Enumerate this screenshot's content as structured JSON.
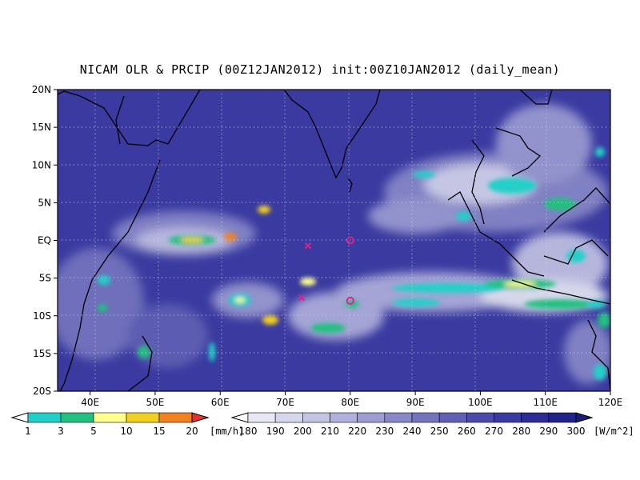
{
  "title": "NICAM OLR & PRCIP (00Z12JAN2012) init:00Z10JAN2012 (daily_mean)",
  "map": {
    "lon_range": [
      35,
      120
    ],
    "lat_range": [
      -20,
      20
    ],
    "lat_ticks": [
      "20N",
      "15N",
      "10N",
      "5N",
      "EQ",
      "5S",
      "10S",
      "15S",
      "20S"
    ],
    "lon_ticks": [
      "40E",
      "50E",
      "60E",
      "70E",
      "80E",
      "90E",
      "100E",
      "110E",
      "120E"
    ],
    "grid": "dotted"
  },
  "markers": [
    {
      "symbol": "x",
      "lon": 73.5,
      "lat": -0.7,
      "color": "#e0208c"
    },
    {
      "symbol": "x",
      "lon": 72.5,
      "lat": -7.6,
      "color": "#e0208c"
    },
    {
      "symbol": "o",
      "lon": 80,
      "lat": 0,
      "color": "#e0208c"
    },
    {
      "symbol": "o",
      "lon": 80,
      "lat": -8,
      "color": "#e0208c"
    }
  ],
  "precip_legend": {
    "unit": "[mm/h]",
    "labels": [
      "1",
      "3",
      "5",
      "10",
      "15",
      "20"
    ],
    "colors": [
      "#ffffff",
      "#20d0c8",
      "#20c080",
      "#ffff90",
      "#f0d020",
      "#f08020",
      "#e83030"
    ]
  },
  "olr_legend": {
    "unit": "[W/m^2]",
    "labels": [
      "180",
      "190",
      "200",
      "210",
      "220",
      "230",
      "240",
      "250",
      "260",
      "270",
      "280",
      "290",
      "300"
    ],
    "colors": [
      "#ffffff",
      "#e8e8f4",
      "#d6d6ec",
      "#c4c4e4",
      "#b0b0dc",
      "#9c9cd2",
      "#8888c8",
      "#7474be",
      "#6060b4",
      "#4c4caa",
      "#3a3aa0",
      "#2c2c94",
      "#222288",
      "#1a1a78"
    ]
  }
}
